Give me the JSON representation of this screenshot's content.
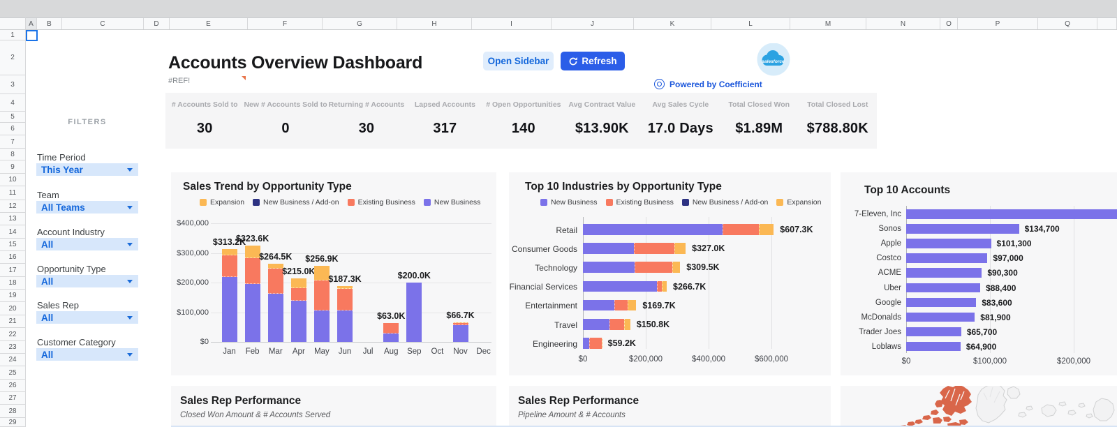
{
  "spreadsheet": {
    "columns": [
      "A",
      "B",
      "C",
      "D",
      "E",
      "F",
      "G",
      "H",
      "I",
      "J",
      "K",
      "L",
      "M",
      "N",
      "O",
      "P",
      "Q"
    ],
    "rows": [
      "1",
      "2",
      "3",
      "4",
      "5",
      "6",
      "7",
      "8",
      "9",
      "10",
      "11",
      "12",
      "13",
      "14",
      "15",
      "16",
      "17",
      "18",
      "19",
      "20",
      "21",
      "22",
      "23",
      "24",
      "25",
      "26",
      "27",
      "28",
      "29"
    ],
    "selected_cell": "A1"
  },
  "header": {
    "title": "Accounts Overview Dashboard",
    "ref_error": "#REF!",
    "open_sidebar_label": "Open Sidebar",
    "refresh_label": "Refresh",
    "powered_by": "Powered by Coefficient",
    "logo": "salesforce"
  },
  "kpis": [
    {
      "label": "# Accounts Sold to",
      "value": "30"
    },
    {
      "label": "New # Accounts Sold to",
      "value": "0"
    },
    {
      "label": "Returning # Accounts",
      "value": "30"
    },
    {
      "label": "Lapsed Accounts",
      "value": "317"
    },
    {
      "label": "# Open Opportunities",
      "value": "140"
    },
    {
      "label": "Avg Contract Value",
      "value": "$13.90K"
    },
    {
      "label": "Avg Sales Cycle",
      "value": "17.0 Days"
    },
    {
      "label": "Total Closed Won",
      "value": "$1.89M"
    },
    {
      "label": "Total Closed Lost",
      "value": "$788.80K"
    }
  ],
  "filters": {
    "heading": "FILTERS",
    "items": [
      {
        "label": "Time Period",
        "value": "This Year"
      },
      {
        "label": "Team",
        "value": "All Teams"
      },
      {
        "label": "Account Industry",
        "value": "All"
      },
      {
        "label": "Opportunity Type",
        "value": "All"
      },
      {
        "label": "Sales Rep",
        "value": "All"
      },
      {
        "label": "Customer Category",
        "value": "All"
      }
    ]
  },
  "chart_data": [
    {
      "id": "sales-trend",
      "type": "bar",
      "stacked": true,
      "title": "Sales Trend by Opportunity Type",
      "categories": [
        "Jan",
        "Feb",
        "Mar",
        "Apr",
        "May",
        "Jun",
        "Jul",
        "Aug",
        "Sep",
        "Oct",
        "Nov",
        "Dec"
      ],
      "legend": [
        "Expansion",
        "New Business / Add-on",
        "Existing Business",
        "New Business"
      ],
      "series": [
        {
          "name": "New Business",
          "color": "#7b72e9",
          "values_k": [
            218,
            195,
            163,
            138,
            106,
            106,
            0,
            28,
            200,
            0,
            57,
            0
          ]
        },
        {
          "name": "Existing Business",
          "color": "#f8795f",
          "values_k": [
            74,
            88,
            85,
            44,
            100,
            72,
            0,
            35,
            0,
            0,
            8,
            0
          ]
        },
        {
          "name": "New Business / Add-on",
          "color": "#2d3282",
          "values_k": [
            0,
            0,
            0,
            0,
            0,
            0,
            0,
            0,
            0,
            0,
            0,
            0
          ]
        },
        {
          "name": "Expansion",
          "color": "#fbb854",
          "values_k": [
            21.2,
            40.6,
            16.5,
            33,
            50.9,
            9.3,
            0,
            0,
            0,
            0,
            1.7,
            0
          ]
        }
      ],
      "total_labels": [
        "$313.2K",
        "$323.6K",
        "$264.5K",
        "$215.0K",
        "$256.9K",
        "$187.3K",
        "",
        "$63.0K",
        "$200.0K",
        "",
        "$66.7K",
        ""
      ],
      "y_ticks": [
        "$400,000",
        "$300,000",
        "$200,000",
        "$100,000",
        "$0"
      ],
      "ymax_k": 400,
      "grid": true,
      "legend_position": "top"
    },
    {
      "id": "top-industries",
      "type": "bar",
      "orientation": "horizontal",
      "stacked": true,
      "title": "Top 10 Industries by Opportunity Type",
      "categories": [
        "Retail",
        "Consumer Goods",
        "Technology",
        "Financial Services",
        "Entertainment",
        "Travel",
        "Engineering"
      ],
      "legend": [
        "New Business",
        "Existing Business",
        "New Business / Add-on",
        "Expansion"
      ],
      "series": [
        {
          "name": "New Business",
          "color": "#7b72e9",
          "values_k": [
            445,
            163,
            165,
            235,
            100,
            85,
            20
          ]
        },
        {
          "name": "Existing Business",
          "color": "#f8795f",
          "values_k": [
            115,
            129,
            120,
            17,
            42,
            45,
            39
          ]
        },
        {
          "name": "New Business / Add-on",
          "color": "#2d3282",
          "values_k": [
            0,
            0,
            0,
            0,
            0,
            0,
            0
          ]
        },
        {
          "name": "Expansion",
          "color": "#fbb854",
          "values_k": [
            47.3,
            35,
            24.5,
            14.7,
            27.7,
            20.8,
            0.2
          ]
        }
      ],
      "total_labels": [
        "$607.3K",
        "$327.0K",
        "$309.5K",
        "$266.7K",
        "$169.7K",
        "$150.8K",
        "$59.2K"
      ],
      "x_ticks": [
        "$0",
        "$200,000",
        "$400,000",
        "$600,000"
      ],
      "xmax_k": 600,
      "grid": true,
      "legend_position": "top"
    },
    {
      "id": "top-accounts",
      "type": "bar",
      "orientation": "horizontal",
      "stacked": false,
      "title": "Top 10 Accounts",
      "categories": [
        "7-Eleven, Inc",
        "Sonos",
        "Apple",
        "Costco",
        "ACME",
        "Uber",
        "Google",
        "McDonalds",
        "Trader Joes",
        "Loblaws"
      ],
      "values": [
        null,
        134700,
        101300,
        97000,
        90300,
        88400,
        83600,
        81900,
        65700,
        64900
      ],
      "value_labels": [
        "",
        "$134,700",
        "$101,300",
        "$97,000",
        "$90,300",
        "$88,400",
        "$83,600",
        "$81,900",
        "$65,700",
        "$64,900"
      ],
      "bar_color": "#7b72e9",
      "x_ticks": [
        "$0",
        "$100,000",
        "$200,000"
      ],
      "first_bar_clipped": true,
      "grid": true
    }
  ],
  "bottom_panels": [
    {
      "title": "Sales Rep Performance",
      "subtitle": "Closed Won Amount & # Accounts Served"
    },
    {
      "title": "Sales Rep Performance",
      "subtitle": "Pipeline Amount & # Accounts"
    }
  ],
  "map_panel": {
    "type": "geo-map",
    "highlight_color": "#d9664a",
    "land_outline_color": "#cfd0d1"
  }
}
